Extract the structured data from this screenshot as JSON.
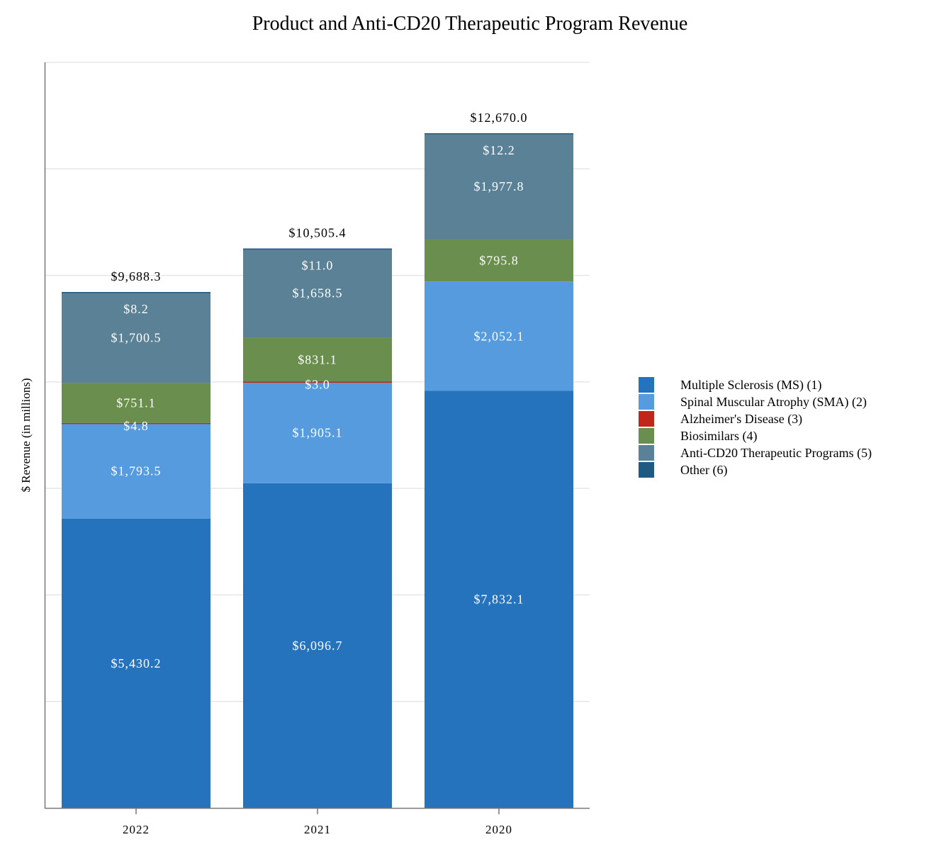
{
  "chart_data": {
    "type": "bar",
    "stacked": true,
    "title": "Product and Anti-CD20 Therapeutic Program Revenue",
    "xlabel": "",
    "ylabel": "$ Revenue (in millions)",
    "ylim": [
      0,
      14000
    ],
    "grid": true,
    "grid_step": 2000,
    "legend_position": "right",
    "categories": [
      "2022",
      "2021",
      "2020"
    ],
    "series": [
      {
        "name": "Multiple Sclerosis (MS) (1)",
        "color": "#2673bd",
        "values": [
          5430.2,
          6096.7,
          7832.1
        ],
        "labels": [
          "$5,430.2",
          "$6,096.7",
          "$7,832.1"
        ]
      },
      {
        "name": "Spinal Muscular Atrophy (SMA) (2)",
        "color": "#559bdd",
        "values": [
          1793.5,
          1905.1,
          2052.1
        ],
        "labels": [
          "$1,793.5",
          "$1,905.1",
          "$2,052.1"
        ]
      },
      {
        "name": "Alzheimer's Disease (3)",
        "color": "#c0261a",
        "values": [
          4.8,
          3.0,
          0
        ],
        "labels": [
          "$4.8",
          "$3.0",
          null
        ]
      },
      {
        "name": "Biosimilars (4)",
        "color": "#6a8e4e",
        "values": [
          751.1,
          831.1,
          795.8
        ],
        "labels": [
          "$751.1",
          "$831.1",
          "$795.8"
        ]
      },
      {
        "name": "Anti-CD20 Therapeutic Programs (5)",
        "color": "#5a8196",
        "values": [
          1700.5,
          1658.5,
          1977.8
        ],
        "labels": [
          "$1,700.5",
          "$1,658.5",
          "$1,977.8"
        ]
      },
      {
        "name": "Other (6)",
        "color": "#1f5a82",
        "values": [
          8.2,
          11.0,
          12.2
        ],
        "labels": [
          "$8.2",
          "$11.0",
          "$12.2"
        ]
      }
    ],
    "totals": [
      9688.3,
      10505.4,
      12670.0
    ],
    "total_labels": [
      "$9,688.3",
      "$10,505.4",
      "$12,670.0"
    ]
  }
}
